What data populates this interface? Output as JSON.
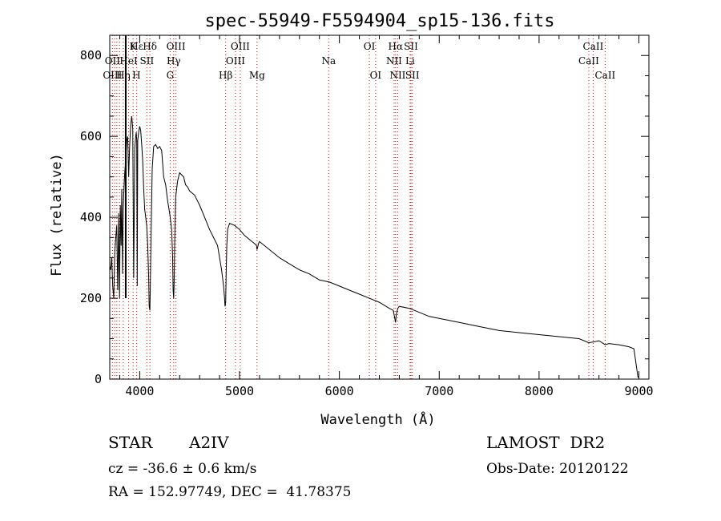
{
  "chart_data": {
    "type": "line",
    "title": "spec-55949-F5594904_sp15-136.fits",
    "xlabel": "Wavelength (Å)",
    "ylabel": "Flux (relative)",
    "xlim": [
      3700,
      9100
    ],
    "ylim": [
      0,
      850
    ],
    "xticks": [
      4000,
      5000,
      6000,
      7000,
      8000,
      9000
    ],
    "yticks": [
      0,
      200,
      400,
      600,
      800
    ],
    "grid": false,
    "line_color": "#000000",
    "marker_color": "#cc0000",
    "series": [
      {
        "x": [
          3700,
          3710,
          3720,
          3730,
          3740,
          3750,
          3760,
          3770,
          3780,
          3790,
          3798,
          3806,
          3814,
          3820,
          3828,
          3835,
          3842,
          3850,
          3860,
          3870,
          3880,
          3889,
          3900,
          3910,
          3920,
          3930,
          3940,
          3950,
          3960,
          3965,
          3970,
          3975,
          3980,
          3990,
          4000,
          4010,
          4020,
          4030,
          4040,
          4050,
          4060,
          4070,
          4080,
          4090,
          4095,
          4102,
          4108,
          4115,
          4125,
          4140,
          4160,
          4180,
          4200,
          4220,
          4240,
          4260,
          4280,
          4300,
          4320,
          4330,
          4335,
          4340,
          4345,
          4350,
          4360,
          4380,
          4400,
          4420,
          4440,
          4460,
          4480,
          4500,
          4550,
          4600,
          4650,
          4700,
          4740,
          4780,
          4800,
          4820,
          4840,
          4850,
          4855,
          4861,
          4866,
          4872,
          4880,
          4900,
          4950,
          5000,
          5050,
          5100,
          5150,
          5170,
          5175,
          5180,
          5190,
          5200,
          5300,
          5400,
          5500,
          5600,
          5700,
          5800,
          5900,
          6000,
          6100,
          6200,
          6300,
          6400,
          6500,
          6540,
          6555,
          6563,
          6570,
          6585,
          6600,
          6700,
          6800,
          6900,
          7000,
          7200,
          7400,
          7600,
          7800,
          8000,
          8200,
          8400,
          8498,
          8542,
          8600,
          8662,
          8700,
          8800,
          8900,
          8950,
          8990,
          9000
        ],
        "y": [
          280,
          270,
          300,
          230,
          200,
          310,
          350,
          380,
          220,
          410,
          200,
          430,
          330,
          470,
          260,
          420,
          470,
          510,
          540,
          590,
          600,
          500,
          580,
          630,
          650,
          620,
          250,
          570,
          600,
          610,
          590,
          230,
          590,
          610,
          625,
          615,
          580,
          540,
          470,
          420,
          400,
          380,
          330,
          250,
          180,
          170,
          250,
          370,
          520,
          575,
          580,
          570,
          575,
          565,
          500,
          480,
          440,
          410,
          370,
          300,
          220,
          200,
          240,
          330,
          450,
          490,
          510,
          505,
          500,
          480,
          475,
          465,
          455,
          430,
          400,
          370,
          350,
          330,
          300,
          270,
          230,
          200,
          180,
          190,
          260,
          330,
          370,
          385,
          380,
          370,
          355,
          345,
          335,
          330,
          320,
          325,
          335,
          340,
          320,
          300,
          285,
          270,
          260,
          245,
          240,
          230,
          220,
          210,
          200,
          190,
          175,
          170,
          150,
          140,
          160,
          175,
          180,
          175,
          165,
          155,
          150,
          140,
          130,
          120,
          115,
          110,
          105,
          100,
          90,
          92,
          95,
          85,
          88,
          85,
          80,
          75,
          5,
          5
        ]
      }
    ],
    "annotations": [
      {
        "text": "Hε",
        "wl": 3970,
        "row": 0
      },
      {
        "text": "K",
        "wl": 3934,
        "row": 0
      },
      {
        "text": "Hδ",
        "wl": 4102,
        "row": 0
      },
      {
        "text": "OIII",
        "wl": 4363,
        "row": 0
      },
      {
        "text": "OIII",
        "wl": 5007,
        "row": 0
      },
      {
        "text": "OI",
        "wl": 6300,
        "row": 0
      },
      {
        "text": "Hα",
        "wl": 6563,
        "row": 0
      },
      {
        "text": "SII",
        "wl": 6717,
        "row": 0
      },
      {
        "text": "CaII",
        "wl": 8542,
        "row": 0
      },
      {
        "text": "OII",
        "wl": 3727,
        "row": 1
      },
      {
        "text": "HeI",
        "wl": 3889,
        "row": 1
      },
      {
        "text": "SII",
        "wl": 4072,
        "row": 1
      },
      {
        "text": "Hγ",
        "wl": 4340,
        "row": 1
      },
      {
        "text": "OIII",
        "wl": 4959,
        "row": 1
      },
      {
        "text": "Na",
        "wl": 5893,
        "row": 1
      },
      {
        "text": "NII",
        "wl": 6548,
        "row": 1
      },
      {
        "text": "Li",
        "wl": 6708,
        "row": 1
      },
      {
        "text": "CaII",
        "wl": 8498,
        "row": 1
      },
      {
        "text": "OIII",
        "wl": 3727,
        "row": 2
      },
      {
        "text": "Hη",
        "wl": 3835,
        "row": 2
      },
      {
        "text": "H",
        "wl": 3968,
        "row": 2
      },
      {
        "text": "G",
        "wl": 4305,
        "row": 2
      },
      {
        "text": "Hβ",
        "wl": 4861,
        "row": 2
      },
      {
        "text": "Mg",
        "wl": 5175,
        "row": 2
      },
      {
        "text": "OI",
        "wl": 6363,
        "row": 2
      },
      {
        "text": "NII",
        "wl": 6584,
        "row": 2
      },
      {
        "text": "SII",
        "wl": 6731,
        "row": 2
      },
      {
        "text": "CaII",
        "wl": 8662,
        "row": 2
      }
    ],
    "marker_wavelengths": [
      3727,
      3750,
      3771,
      3798,
      3835,
      3889,
      3934,
      3970,
      4072,
      4102,
      4305,
      4340,
      4363,
      4861,
      4959,
      5007,
      5175,
      5893,
      6300,
      6363,
      6548,
      6563,
      6584,
      6708,
      6717,
      6731,
      8498,
      8542,
      8662
    ],
    "vertical_marker_wl": 3860
  },
  "info": {
    "object_class": "STAR",
    "subclass": "A2IV",
    "survey": "LAMOST  DR2",
    "redshift": "cz = -36.6 ± 0.6 km/s",
    "obs_date": "Obs-Date: 20120122",
    "coords": "RA = 152.97749, DEC =  41.78375"
  }
}
